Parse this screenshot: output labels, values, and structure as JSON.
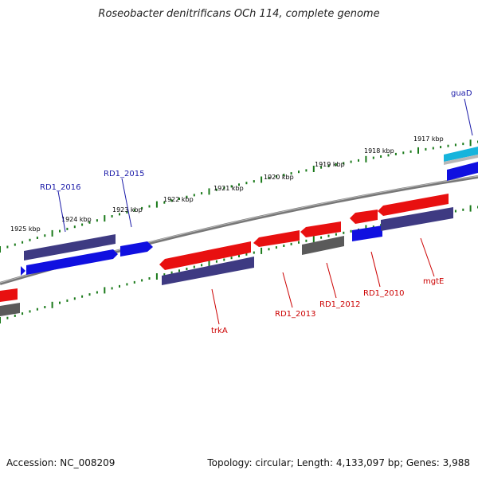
{
  "title": "Roseobacter denitrificans OCh 114, complete genome",
  "footer": {
    "accession": "Accession: NC_008209",
    "summary": "Topology: circular; Length: 4,133,097 bp; Genes: 3,988"
  },
  "colors": {
    "backbone": "#6f6f6f",
    "tick": "#1a7a1a",
    "forward_label": "#1a1aa8",
    "reverse_label": "#cc0000",
    "red_gene": "#e81010",
    "navy_gene": "#3e3a82",
    "blue_gene": "#1010e0",
    "gray_gene": "#5a5a5a",
    "cyan_gene": "#16b4dc"
  },
  "ticks": [
    "1917 kbp",
    "1918 kbp",
    "1919 kbp",
    "1920 kbp",
    "1921 kbp",
    "1922 kbp",
    "1923 kbp",
    "1924 kbp",
    "1925 kbp"
  ],
  "genes": {
    "forward": [
      "guaD",
      "RD1_2015",
      "RD1_2016"
    ],
    "reverse": [
      "mgtE",
      "RD1_2010",
      "RD1_2012",
      "RD1_2013",
      "trkA"
    ]
  }
}
